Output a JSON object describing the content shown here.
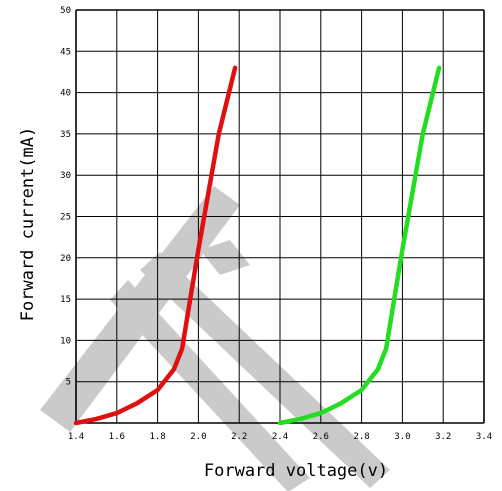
{
  "chart_data": {
    "type": "line",
    "title": "",
    "xlabel": "Forward voltage(v)",
    "ylabel": "Forward current(mA)",
    "xlim": [
      1.4,
      3.4
    ],
    "ylim": [
      0,
      50
    ],
    "grid": true,
    "x_tick_labels": [
      "1.4",
      "1.6",
      "1.8",
      "2.0",
      "2.2",
      "2.4",
      "2.6",
      "2.8",
      "3.0",
      "3.2",
      "3.4"
    ],
    "y_tick_labels": [
      "5",
      "10",
      "15",
      "20",
      "25",
      "30",
      "35",
      "40",
      "45",
      "50"
    ],
    "series": [
      {
        "color": "#e01010",
        "points": [
          [
            1.4,
            0
          ],
          [
            1.5,
            0.5
          ],
          [
            1.6,
            1.2
          ],
          [
            1.7,
            2.4
          ],
          [
            1.8,
            4
          ],
          [
            1.88,
            6.5
          ],
          [
            1.92,
            9
          ],
          [
            1.96,
            15
          ],
          [
            2.0,
            21
          ],
          [
            2.05,
            28
          ],
          [
            2.1,
            35
          ],
          [
            2.15,
            40
          ],
          [
            2.18,
            43
          ]
        ]
      },
      {
        "color": "#22dd22",
        "points": [
          [
            2.4,
            0
          ],
          [
            2.5,
            0.5
          ],
          [
            2.6,
            1.2
          ],
          [
            2.7,
            2.4
          ],
          [
            2.8,
            4
          ],
          [
            2.88,
            6.5
          ],
          [
            2.92,
            9
          ],
          [
            2.96,
            15
          ],
          [
            3.0,
            21
          ],
          [
            3.05,
            28
          ],
          [
            3.1,
            35
          ],
          [
            3.15,
            40
          ],
          [
            3.18,
            43
          ]
        ]
      }
    ]
  },
  "colors": {
    "grid": "#000000",
    "watermark": "#c8c8c8"
  }
}
